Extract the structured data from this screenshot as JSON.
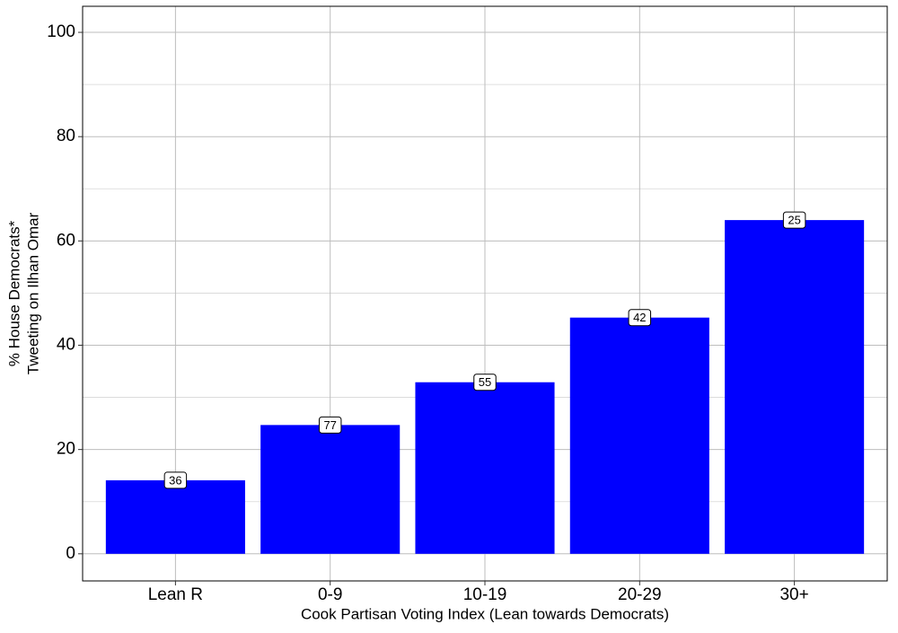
{
  "chart_data": {
    "type": "bar",
    "y_title": [
      "% House Democrats*",
      "Tweeting on Ilhan Omar"
    ],
    "x_title": "Cook Partisan Voting Index (Lean towards Democrats)",
    "categories": [
      "Lean R",
      "0-9",
      "10-19",
      "20-29",
      "30+"
    ],
    "values": [
      14.1,
      24.7,
      32.9,
      45.3,
      64.0
    ],
    "counts": [
      36,
      77,
      55,
      42,
      25
    ],
    "color": "#0000ff",
    "ylim": [
      -5.2,
      105
    ],
    "yticks": [
      0,
      20,
      40,
      60,
      80,
      100
    ],
    "minor_yticks": [
      10,
      30,
      50,
      70,
      90
    ],
    "grid": true
  }
}
